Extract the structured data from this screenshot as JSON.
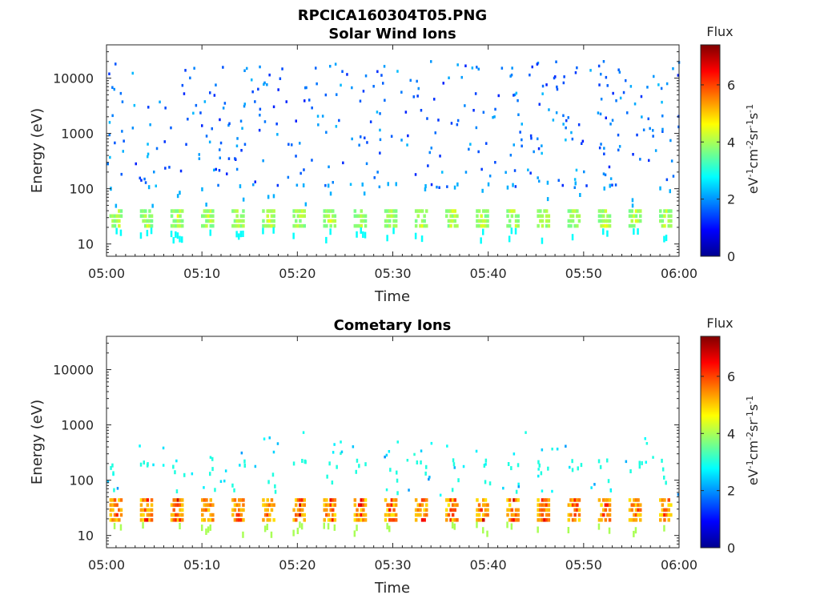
{
  "figure_title": "RPCICA160304T05.PNG",
  "chart_data": [
    {
      "type": "heatmap",
      "title": "Solar Wind Ions",
      "xlabel": "Time",
      "ylabel": "Energy (eV)",
      "x_ticks": [
        "05:00",
        "05:10",
        "05:20",
        "05:30",
        "05:40",
        "05:50",
        "06:00"
      ],
      "x_range": [
        "05:00",
        "06:00"
      ],
      "y_scale": "log",
      "y_ticks": [
        "10",
        "100",
        "1000",
        "10000"
      ],
      "y_range": [
        6,
        40000
      ],
      "colorbar": {
        "title": "Flux",
        "label": "eV-1cm-2sr-1s-1",
        "ticks": [
          "0",
          "2",
          "4",
          "6"
        ],
        "range": [
          0,
          7.4
        ],
        "colormap": "jet"
      },
      "cycle_minutes": 3.2,
      "low_energy_band": {
        "energy_min_eV": 20,
        "energy_max_eV": 40,
        "typical_flux": 3.6,
        "peak_flux": 4.6
      },
      "scattered_counts": {
        "energy_min_eV": 100,
        "energy_max_eV": 20000,
        "typical_flux": 1.6
      }
    },
    {
      "type": "heatmap",
      "title": "Cometary Ions",
      "xlabel": "Time",
      "ylabel": "Energy (eV)",
      "x_ticks": [
        "05:00",
        "05:10",
        "05:20",
        "05:30",
        "05:40",
        "05:50",
        "06:00"
      ],
      "x_range": [
        "05:00",
        "06:00"
      ],
      "y_scale": "log",
      "y_ticks": [
        "10",
        "100",
        "1000",
        "10000"
      ],
      "y_range": [
        6,
        40000
      ],
      "colorbar": {
        "title": "Flux",
        "label": "eV-1cm-2sr-1s-1",
        "ticks": [
          "0",
          "2",
          "4",
          "6"
        ],
        "range": [
          0,
          7.4
        ],
        "colormap": "jet"
      },
      "cycle_minutes": 3.2,
      "low_energy_band": {
        "energy_min_eV": 18,
        "energy_max_eV": 45,
        "typical_flux": 4.8,
        "peak_flux": 6.9
      },
      "scattered_counts": {
        "energy_min_eV": 50,
        "energy_max_eV": 700,
        "typical_flux": 2.4
      }
    }
  ]
}
